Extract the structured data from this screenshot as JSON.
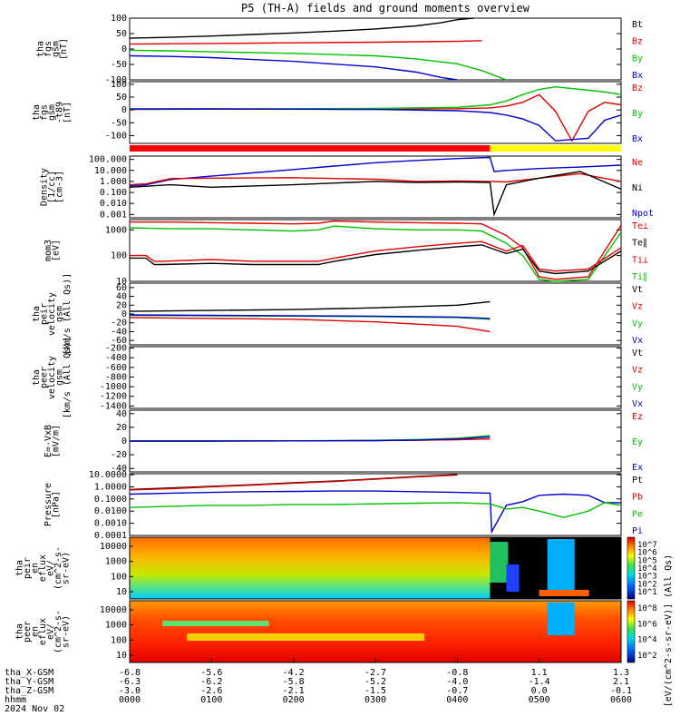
{
  "title": "P5 (TH-A) fields and ground moments overview",
  "date": "2024 Nov 02",
  "chart_data": [
    {
      "id": "fgs_gsm",
      "type": "line",
      "ylabel": [
        "tha",
        "fgs",
        "gsm",
        "[nT]"
      ],
      "ylim": [
        -100,
        100
      ],
      "ticks": [
        100,
        50,
        0,
        -50,
        -100
      ],
      "legend": [
        {
          "name": "Bt",
          "color": "#000000"
        },
        {
          "name": "Bz",
          "color": "#e00000"
        },
        {
          "name": "By",
          "color": "#00c000"
        },
        {
          "name": "Bx",
          "color": "#0000d0"
        }
      ],
      "series": [
        {
          "name": "Bt",
          "x": [
            0,
            0.5,
            1,
            1.5,
            2,
            2.5,
            3,
            3.5,
            3.8,
            4,
            4.2
          ],
          "y": [
            35,
            38,
            42,
            47,
            52,
            58,
            65,
            75,
            85,
            95,
            100
          ]
        },
        {
          "name": "Bz",
          "x": [
            0,
            0.5,
            1,
            2,
            3,
            4,
            4.3
          ],
          "y": [
            16,
            17,
            18,
            20,
            22,
            25,
            27
          ]
        },
        {
          "name": "By",
          "x": [
            0,
            0.5,
            1,
            2,
            3,
            3.5,
            4,
            4.3,
            4.6
          ],
          "y": [
            -4,
            -6,
            -9,
            -14,
            -22,
            -32,
            -48,
            -70,
            -100
          ]
        },
        {
          "name": "Bx",
          "x": [
            0,
            0.5,
            1,
            2,
            3,
            3.5,
            3.8,
            4
          ],
          "y": [
            -22,
            -24,
            -28,
            -40,
            -58,
            -75,
            -92,
            -100
          ]
        }
      ]
    },
    {
      "id": "fgs_gsm_m_t89",
      "type": "line",
      "ylabel": [
        "tha",
        "fgs",
        "gsm",
        "-t89",
        "[nT]"
      ],
      "ylim": [
        -130,
        110
      ],
      "ticks": [
        100,
        50,
        0,
        -50,
        -100
      ],
      "legend": [
        {
          "name": "Bz",
          "color": "#e00000"
        },
        {
          "name": "By",
          "color": "#00c000"
        },
        {
          "name": "Bx",
          "color": "#0000d0"
        }
      ],
      "series": [
        {
          "name": "Bz",
          "x": [
            0,
            1,
            2,
            3,
            4,
            4.4,
            4.6,
            4.8,
            5,
            5.2,
            5.4,
            5.6,
            5.8,
            6
          ],
          "y": [
            2,
            3,
            3,
            4,
            5,
            8,
            15,
            30,
            60,
            -5,
            -120,
            -5,
            30,
            20
          ]
        },
        {
          "name": "By",
          "x": [
            0,
            1,
            2,
            3,
            4,
            4.4,
            4.6,
            4.8,
            5,
            5.2,
            5.8,
            6
          ],
          "y": [
            3,
            4,
            5,
            6,
            10,
            20,
            35,
            60,
            80,
            90,
            70,
            60
          ]
        },
        {
          "name": "Bx",
          "x": [
            0,
            1,
            2,
            3,
            4,
            4.4,
            4.6,
            4.8,
            5,
            5.2,
            5.6,
            5.8,
            6
          ],
          "y": [
            4,
            4,
            3,
            2,
            -3,
            -10,
            -20,
            -35,
            -60,
            -120,
            -110,
            -40,
            -20
          ]
        }
      ]
    },
    {
      "id": "moments_density",
      "type": "line",
      "log": true,
      "ylabel": [
        "Density",
        "[1/cc]",
        "[cm-3]"
      ],
      "ylim": [
        0.0005,
        200
      ],
      "ticks": [
        "100.000",
        "10.000",
        "1.000",
        "0.100",
        "0.010",
        "0.001"
      ],
      "tick_values": [
        100,
        10,
        1,
        0.1,
        0.01,
        0.001
      ],
      "legend": [
        {
          "name": "Ne",
          "color": "#e00000"
        },
        {
          "name": "Ni",
          "color": "#000000"
        },
        {
          "name": "Npot",
          "color": "#0000d0"
        }
      ],
      "series": [
        {
          "name": "Npot",
          "x": [
            0,
            0.2,
            0.5,
            1,
            1.5,
            2,
            2.5,
            3,
            3.5,
            4,
            4.4,
            4.45,
            4.6,
            5,
            5.5,
            6
          ],
          "y": [
            0.4,
            0.5,
            1.5,
            3,
            6,
            12,
            25,
            50,
            80,
            120,
            150,
            8,
            10,
            15,
            20,
            30
          ]
        },
        {
          "name": "Ne",
          "x": [
            0,
            0.2,
            0.5,
            1,
            2,
            3,
            3.5,
            4,
            4.4,
            4.6,
            5,
            5.5,
            6
          ],
          "y": [
            0.5,
            0.6,
            1.8,
            2,
            2.2,
            1.6,
            1.0,
            1.1,
            1.0,
            0.9,
            2,
            5,
            1
          ]
        },
        {
          "name": "Ni",
          "x": [
            0,
            0.5,
            1,
            2,
            3,
            3.5,
            4,
            4.4,
            4.45,
            4.6,
            5,
            5.5,
            6
          ],
          "y": [
            0.3,
            0.5,
            0.3,
            0.5,
            1.0,
            0.8,
            0.9,
            0.8,
            0.001,
            0.5,
            2,
            8,
            0.2
          ]
        }
      ]
    },
    {
      "id": "moments_temperature",
      "type": "line",
      "log": true,
      "ylabel": [
        "mom3",
        "[eV]"
      ],
      "ylim": [
        10,
        2500
      ],
      "ticks": [
        "1000",
        "100",
        "10"
      ],
      "tick_values": [
        1000,
        100,
        10
      ],
      "legend": [
        {
          "name": "Te⊥",
          "color": "#e00000"
        },
        {
          "name": "Te∥",
          "color": "#000000"
        },
        {
          "name": "Ti⊥",
          "color": "#e00000"
        },
        {
          "name": "Ti∥",
          "color": "#00c000"
        }
      ],
      "series": [
        {
          "name": "Ti⊥",
          "x": [
            0,
            0.5,
            1,
            1.5,
            2,
            2.3,
            2.5,
            3,
            3.5,
            4,
            4.3,
            4.6,
            4.8,
            5,
            5.2,
            5.6,
            6
          ],
          "y": [
            2000,
            2000,
            1900,
            1800,
            1700,
            1800,
            2200,
            2000,
            1900,
            1800,
            1700,
            600,
            200,
            15,
            12,
            15,
            1500
          ]
        },
        {
          "name": "Ti∥",
          "x": [
            0,
            0.5,
            1,
            1.5,
            2,
            2.3,
            2.5,
            3,
            3.5,
            4,
            4.3,
            4.6,
            4.8,
            5,
            5.2,
            5.6,
            6
          ],
          "y": [
            1200,
            1100,
            1100,
            1000,
            900,
            1000,
            1400,
            1100,
            1000,
            1000,
            900,
            300,
            100,
            12,
            10,
            12,
            800
          ]
        },
        {
          "name": "Te⊥",
          "x": [
            0,
            0.2,
            0.3,
            0.4,
            1,
            1.5,
            2,
            2.3,
            2.5,
            3,
            3.5,
            4,
            4.3,
            4.6,
            4.8,
            5,
            5.2,
            5.6,
            6
          ],
          "y": [
            100,
            100,
            60,
            60,
            70,
            60,
            60,
            60,
            80,
            150,
            220,
            300,
            350,
            150,
            250,
            30,
            25,
            30,
            200
          ]
        },
        {
          "name": "Te∥",
          "x": [
            0,
            0.2,
            0.3,
            0.4,
            1,
            1.5,
            2,
            2.3,
            2.5,
            3,
            3.5,
            4,
            4.3,
            4.6,
            4.8,
            5,
            5.2,
            5.6,
            6
          ],
          "y": [
            80,
            80,
            45,
            45,
            50,
            45,
            45,
            45,
            60,
            110,
            160,
            220,
            260,
            120,
            180,
            25,
            20,
            25,
            150
          ]
        }
      ]
    },
    {
      "id": "peir_velocity",
      "type": "line",
      "ylabel": [
        "tha",
        "peir",
        "velocity",
        "gsm",
        "[km/s (All Qs)]"
      ],
      "ylim": [
        -70,
        70
      ],
      "ticks": [
        60,
        40,
        20,
        0,
        -20,
        -40,
        -60
      ],
      "legend": [
        {
          "name": "Vt",
          "color": "#000000"
        },
        {
          "name": "Vz",
          "color": "#e00000"
        },
        {
          "name": "Vy",
          "color": "#00c000"
        },
        {
          "name": "Vx",
          "color": "#0000d0"
        }
      ],
      "series": [
        {
          "name": "Vt",
          "x": [
            0,
            1,
            2,
            3,
            4,
            4.4
          ],
          "y": [
            6,
            8,
            10,
            14,
            20,
            28
          ]
        },
        {
          "name": "Vz",
          "x": [
            0,
            1,
            2,
            3,
            4,
            4.4
          ],
          "y": [
            -8,
            -10,
            -12,
            -18,
            -28,
            -40
          ]
        },
        {
          "name": "Vy",
          "x": [
            0,
            1,
            2,
            3,
            4,
            4.4
          ],
          "y": [
            -3,
            -4,
            -5,
            -6,
            -8,
            -12
          ]
        },
        {
          "name": "Vx",
          "x": [
            0,
            1,
            2,
            3,
            4,
            4.4
          ],
          "y": [
            -2,
            -3,
            -4,
            -5,
            -7,
            -10
          ]
        }
      ]
    },
    {
      "id": "peer_velocity",
      "type": "line",
      "ylabel": [
        "tha",
        "peer",
        "velocity",
        "gsm",
        "[km/s (All Qs)]"
      ],
      "ylim": [
        -1450,
        -170
      ],
      "ticks": [
        -200,
        -400,
        -600,
        -800,
        -1000,
        -1200,
        -1400
      ],
      "legend": [
        {
          "name": "Vt",
          "color": "#000000"
        },
        {
          "name": "Vz",
          "color": "#e00000"
        },
        {
          "name": "Vy",
          "color": "#00c000"
        },
        {
          "name": "Vx",
          "color": "#0000d0"
        }
      ],
      "series": []
    },
    {
      "id": "e_vxb",
      "type": "line",
      "ylabel": [
        "E=-VxB",
        "[mV/m]"
      ],
      "ylim": [
        -45,
        45
      ],
      "ticks": [
        40,
        20,
        0,
        -20,
        -40
      ],
      "legend": [
        {
          "name": "Ez",
          "color": "#e00000"
        },
        {
          "name": "Ey",
          "color": "#00c000"
        },
        {
          "name": "Ex",
          "color": "#0000d0"
        }
      ],
      "series": [
        {
          "name": "Ez",
          "x": [
            0,
            1,
            2,
            3,
            3.5,
            4,
            4.4
          ],
          "y": [
            0,
            0,
            0.2,
            0.5,
            1,
            2,
            3
          ]
        },
        {
          "name": "Ey",
          "x": [
            0,
            1,
            2,
            3,
            3.5,
            4,
            4.4
          ],
          "y": [
            0,
            0,
            0.3,
            1,
            2,
            4,
            8
          ]
        },
        {
          "name": "Ex",
          "x": [
            0,
            1,
            2,
            3,
            3.5,
            4,
            4.4
          ],
          "y": [
            0,
            0,
            0.2,
            0.6,
            1.5,
            3,
            6
          ]
        }
      ]
    },
    {
      "id": "pressure",
      "type": "line",
      "log": true,
      "ylabel": [
        "Pressure",
        "[nPa]"
      ],
      "ylim": [
        0.0001,
        12
      ],
      "ticks": [
        "10.0000",
        "1.0000",
        "0.1000",
        "0.0100",
        "0.0010",
        "0.0001"
      ],
      "tick_values": [
        10,
        1,
        0.1,
        0.01,
        0.001,
        0.0001
      ],
      "legend": [
        {
          "name": "Pt",
          "color": "#000000"
        },
        {
          "name": "Pb",
          "color": "#e00000"
        },
        {
          "name": "Pe",
          "color": "#00c000"
        },
        {
          "name": "Pi",
          "color": "#0000d0"
        }
      ],
      "series": [
        {
          "name": "Pt",
          "x": [
            0,
            0.5,
            1,
            1.5,
            2,
            2.5,
            3,
            3.5,
            4
          ],
          "y": [
            0.6,
            0.8,
            1.1,
            1.5,
            2.2,
            3,
            4.5,
            7,
            10
          ]
        },
        {
          "name": "Pb",
          "x": [
            0,
            0.5,
            1,
            1.5,
            2,
            2.5,
            3,
            3.5,
            4
          ],
          "y": [
            0.55,
            0.7,
            1.0,
            1.4,
            2,
            2.8,
            4.2,
            6.5,
            9.5
          ]
        },
        {
          "name": "Pi",
          "x": [
            0,
            0.5,
            1,
            1.5,
            2,
            2.5,
            3,
            3.5,
            4,
            4.4,
            4.42,
            4.6,
            4.8,
            5,
            5.3,
            5.6,
            5.8,
            6
          ],
          "y": [
            0.25,
            0.3,
            0.35,
            0.4,
            0.42,
            0.45,
            0.45,
            0.4,
            0.35,
            0.3,
            0.0002,
            0.03,
            0.06,
            0.2,
            0.25,
            0.2,
            0.05,
            0.05
          ]
        },
        {
          "name": "Pe",
          "x": [
            0,
            0.5,
            1,
            1.5,
            2,
            2.5,
            3,
            3.5,
            4,
            4.4,
            4.6,
            4.8,
            5,
            5.3,
            5.6,
            5.8,
            6
          ],
          "y": [
            0.02,
            0.025,
            0.03,
            0.03,
            0.035,
            0.035,
            0.04,
            0.045,
            0.05,
            0.04,
            0.015,
            0.02,
            0.01,
            0.003,
            0.01,
            0.05,
            0.03
          ]
        }
      ]
    },
    {
      "id": "peir_en_eflux",
      "type": "heatmap",
      "ylabel": [
        "tha",
        "peir",
        "en",
        "eflux",
        "eV/",
        "(cm^2-s-",
        "sr-eV)"
      ],
      "ticks": [
        "10000",
        "1000",
        "100",
        "10"
      ],
      "colorbar_ticks": [
        "10^7",
        "10^6",
        "10^5",
        "10^4",
        "10^3",
        "10^2",
        "10^1"
      ]
    },
    {
      "id": "peer_en_eflux",
      "type": "heatmap",
      "ylabel": [
        "tha",
        "peer",
        "en",
        "eflux",
        "eV/",
        "(cm^2-s-",
        "sr-eV)"
      ],
      "ticks": [
        "10000",
        "1000",
        "100",
        "10"
      ],
      "colorbar_ticks": [
        "10^8",
        "10^6",
        "10^4",
        "10^2"
      ]
    }
  ],
  "colorbar_label": "[eV/(cm^2-s-sr-eV)] (All Qs)",
  "x_axis": {
    "rows": [
      {
        "label": "tha_X-GSM",
        "values": [
          "-6.8",
          "-5.6",
          "-4.2",
          "-2.7",
          "-0.8",
          "1.1",
          "1.3"
        ]
      },
      {
        "label": "tha_Y-GSM",
        "values": [
          "-6.3",
          "-6.2",
          "-5.8",
          "-5.2",
          "-4.0",
          "-1.4",
          "2.1"
        ]
      },
      {
        "label": "tha_Z-GSM",
        "values": [
          "-3.0",
          "-2.6",
          "-2.1",
          "-1.5",
          "-0.7",
          "0.0",
          "-0.1"
        ]
      },
      {
        "label": "hhmm",
        "values": [
          "0000",
          "0100",
          "0200",
          "0300",
          "0400",
          "0500",
          "0600"
        ]
      }
    ]
  },
  "mode_bar": {
    "segments": [
      {
        "color": "#ff0000",
        "from": 0,
        "to": 4.4
      },
      {
        "color": "#ffff00",
        "from": 4.4,
        "to": 6
      }
    ]
  },
  "colors": {
    "black": "#000000",
    "red": "#e00000",
    "green": "#00c000",
    "blue": "#0000d0"
  }
}
